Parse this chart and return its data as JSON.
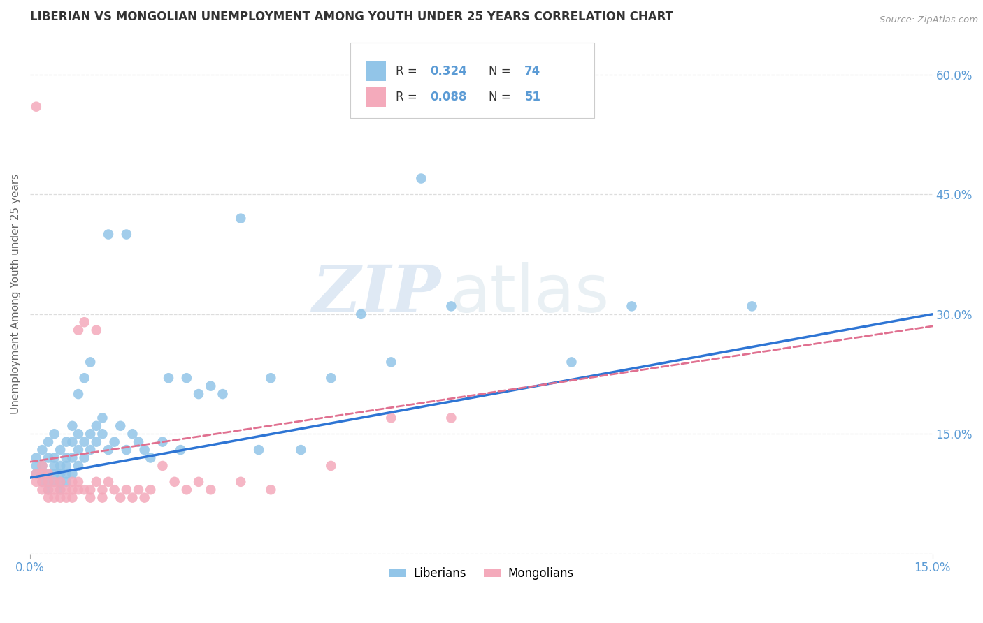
{
  "title": "LIBERIAN VS MONGOLIAN UNEMPLOYMENT AMONG YOUTH UNDER 25 YEARS CORRELATION CHART",
  "source": "Source: ZipAtlas.com",
  "ylabel": "Unemployment Among Youth under 25 years",
  "xlim": [
    0.0,
    0.15
  ],
  "ylim": [
    0.0,
    0.65
  ],
  "xticks": [
    0.0,
    0.15
  ],
  "xtick_labels": [
    "0.0%",
    "15.0%"
  ],
  "yticks": [
    0.0,
    0.15,
    0.3,
    0.45,
    0.6
  ],
  "ytick_labels_left": [
    "",
    "",
    "",
    "",
    ""
  ],
  "ytick_labels_right": [
    "",
    "15.0%",
    "30.0%",
    "45.0%",
    "60.0%"
  ],
  "liberian_color": "#92C5E8",
  "mongolian_color": "#F4AABB",
  "liberian_line_color": "#2E75D4",
  "mongolian_line_color": "#E07090",
  "R_liberian": 0.324,
  "N_liberian": 74,
  "R_mongolian": 0.088,
  "N_mongolian": 51,
  "legend_label_1": "Liberians",
  "legend_label_2": "Mongolians",
  "watermark_zip": "ZIP",
  "watermark_atlas": "atlas",
  "background_color": "#ffffff",
  "grid_color": "#dddddd",
  "axis_label_color": "#5B9BD5",
  "title_color": "#333333",
  "liberian_x": [
    0.001,
    0.001,
    0.001,
    0.002,
    0.002,
    0.002,
    0.002,
    0.003,
    0.003,
    0.003,
    0.003,
    0.003,
    0.004,
    0.004,
    0.004,
    0.004,
    0.004,
    0.005,
    0.005,
    0.005,
    0.005,
    0.005,
    0.006,
    0.006,
    0.006,
    0.006,
    0.006,
    0.007,
    0.007,
    0.007,
    0.007,
    0.008,
    0.008,
    0.008,
    0.008,
    0.009,
    0.009,
    0.009,
    0.01,
    0.01,
    0.01,
    0.011,
    0.011,
    0.012,
    0.012,
    0.013,
    0.013,
    0.014,
    0.015,
    0.016,
    0.016,
    0.017,
    0.018,
    0.019,
    0.02,
    0.022,
    0.023,
    0.025,
    0.026,
    0.028,
    0.03,
    0.032,
    0.035,
    0.038,
    0.04,
    0.045,
    0.05,
    0.055,
    0.06,
    0.065,
    0.07,
    0.09,
    0.1,
    0.12
  ],
  "liberian_y": [
    0.1,
    0.11,
    0.12,
    0.09,
    0.1,
    0.11,
    0.13,
    0.08,
    0.09,
    0.1,
    0.12,
    0.14,
    0.09,
    0.1,
    0.11,
    0.12,
    0.15,
    0.08,
    0.09,
    0.1,
    0.11,
    0.13,
    0.09,
    0.1,
    0.11,
    0.12,
    0.14,
    0.1,
    0.12,
    0.14,
    0.16,
    0.11,
    0.13,
    0.15,
    0.2,
    0.12,
    0.14,
    0.22,
    0.13,
    0.15,
    0.24,
    0.14,
    0.16,
    0.15,
    0.17,
    0.13,
    0.4,
    0.14,
    0.16,
    0.13,
    0.4,
    0.15,
    0.14,
    0.13,
    0.12,
    0.14,
    0.22,
    0.13,
    0.22,
    0.2,
    0.21,
    0.2,
    0.42,
    0.13,
    0.22,
    0.13,
    0.22,
    0.3,
    0.24,
    0.47,
    0.31,
    0.24,
    0.31,
    0.31
  ],
  "mongolian_x": [
    0.001,
    0.001,
    0.001,
    0.002,
    0.002,
    0.002,
    0.002,
    0.003,
    0.003,
    0.003,
    0.003,
    0.004,
    0.004,
    0.004,
    0.005,
    0.005,
    0.005,
    0.006,
    0.006,
    0.007,
    0.007,
    0.007,
    0.008,
    0.008,
    0.008,
    0.009,
    0.009,
    0.01,
    0.01,
    0.011,
    0.011,
    0.012,
    0.012,
    0.013,
    0.014,
    0.015,
    0.016,
    0.017,
    0.018,
    0.019,
    0.02,
    0.022,
    0.024,
    0.026,
    0.028,
    0.03,
    0.035,
    0.04,
    0.05,
    0.06,
    0.07
  ],
  "mongolian_y": [
    0.09,
    0.1,
    0.56,
    0.08,
    0.09,
    0.1,
    0.11,
    0.07,
    0.08,
    0.09,
    0.1,
    0.07,
    0.08,
    0.09,
    0.07,
    0.08,
    0.09,
    0.07,
    0.08,
    0.07,
    0.08,
    0.09,
    0.08,
    0.09,
    0.28,
    0.08,
    0.29,
    0.07,
    0.08,
    0.09,
    0.28,
    0.07,
    0.08,
    0.09,
    0.08,
    0.07,
    0.08,
    0.07,
    0.08,
    0.07,
    0.08,
    0.11,
    0.09,
    0.08,
    0.09,
    0.08,
    0.09,
    0.08,
    0.11,
    0.17,
    0.17
  ],
  "line_lib_x0": 0.0,
  "line_lib_y0": 0.095,
  "line_lib_x1": 0.15,
  "line_lib_y1": 0.3,
  "line_mong_x0": 0.0,
  "line_mong_y0": 0.115,
  "line_mong_x1": 0.15,
  "line_mong_y1": 0.285
}
